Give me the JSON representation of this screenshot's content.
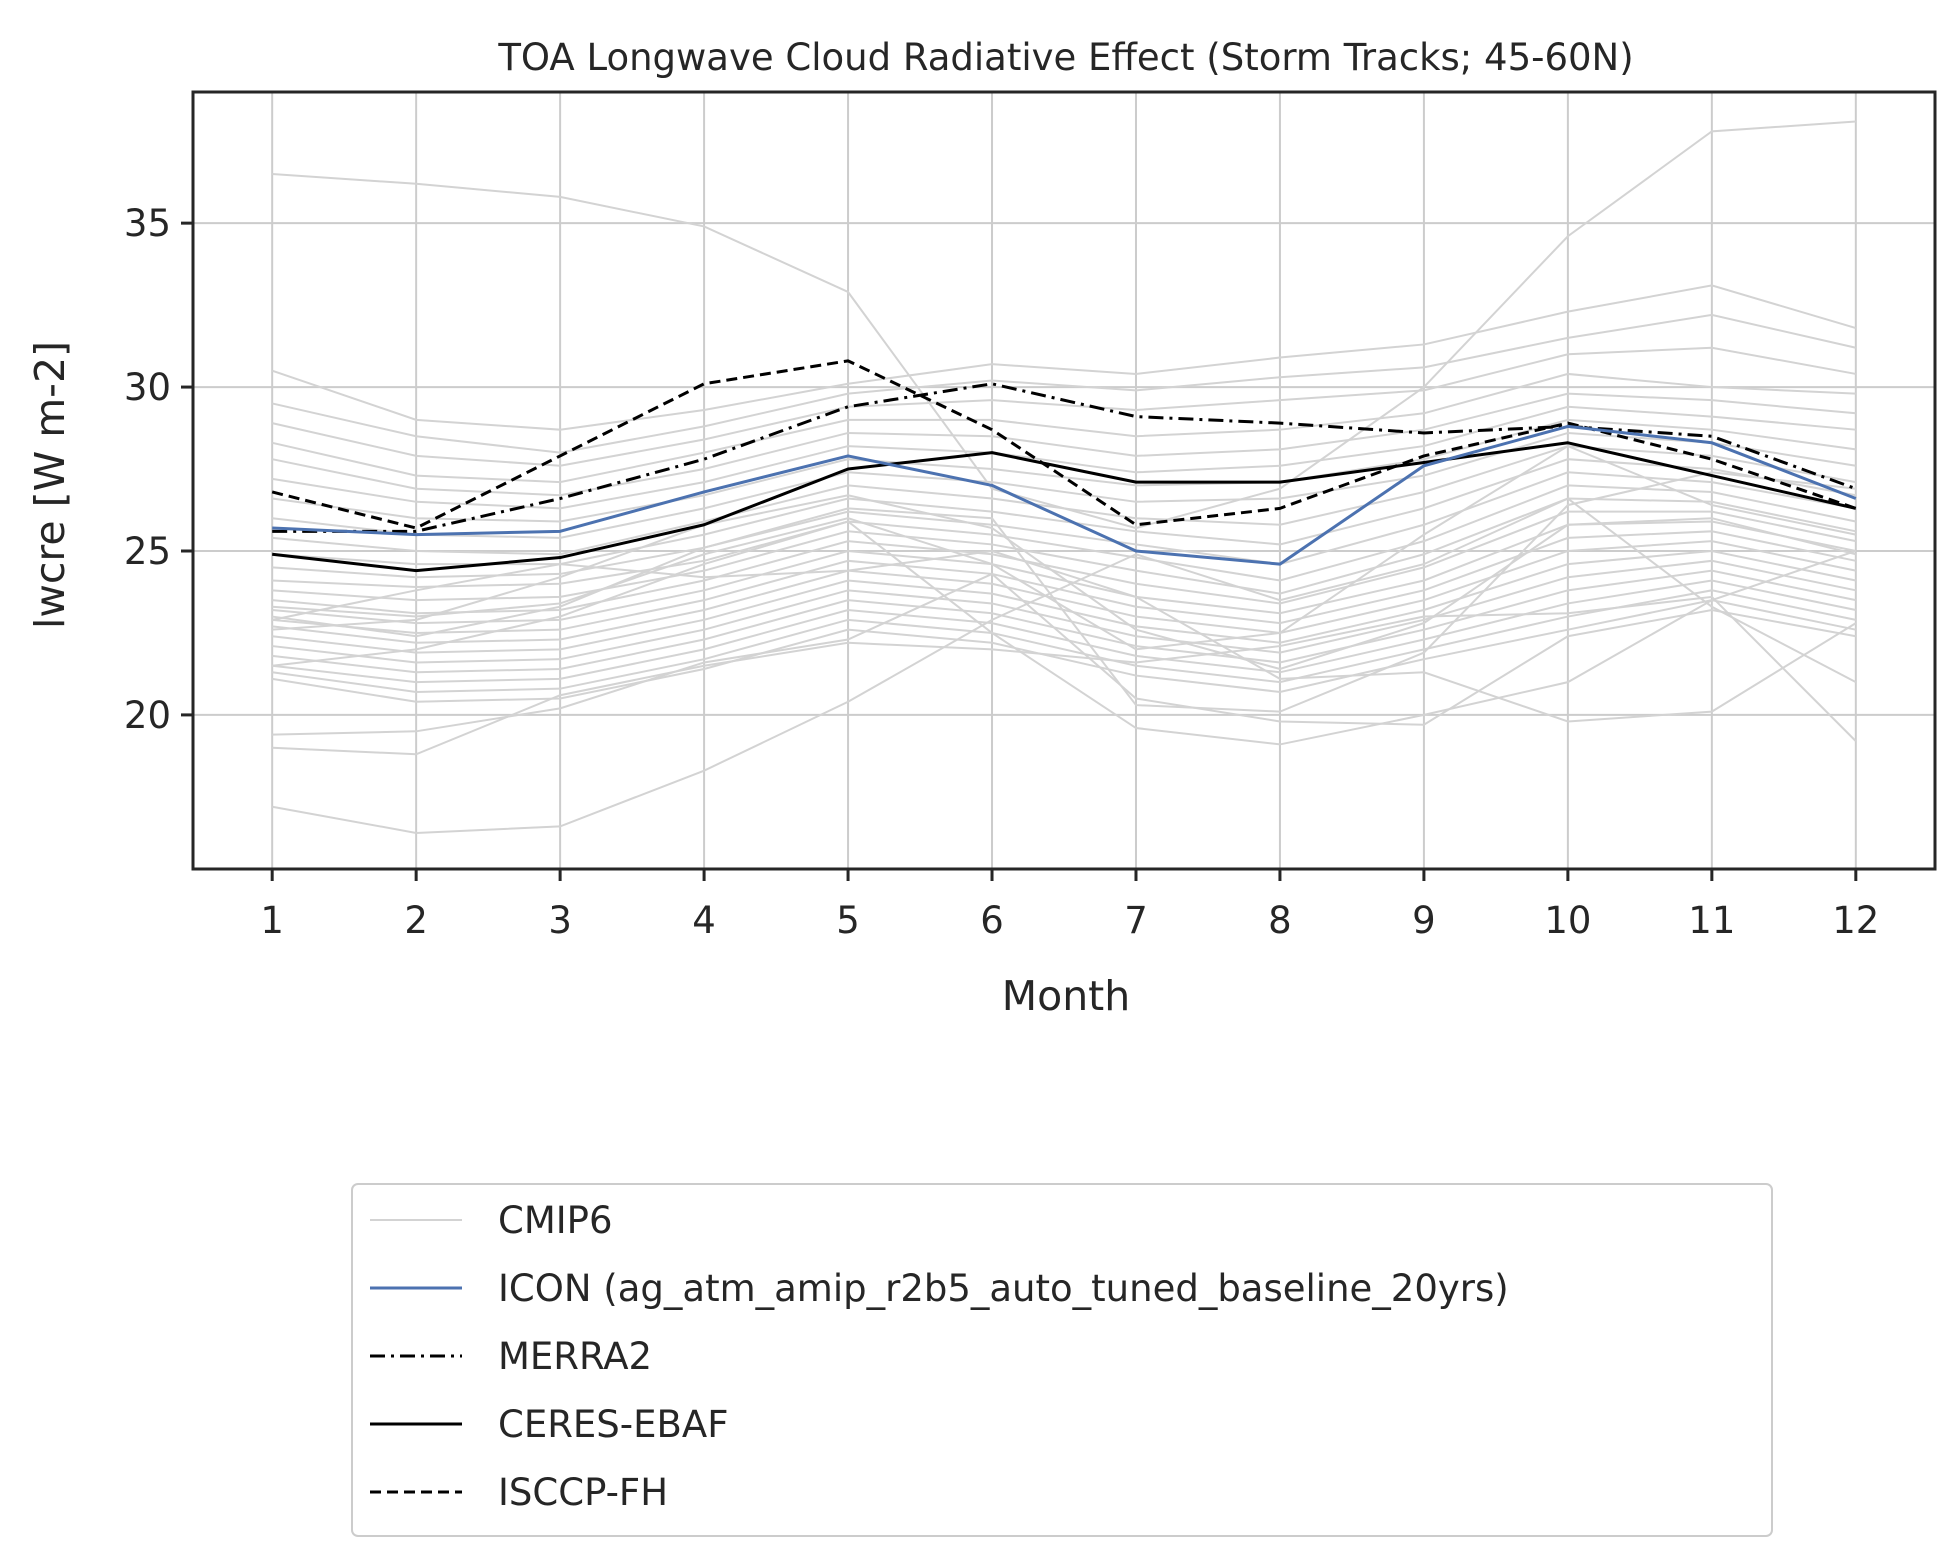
{
  "chart_data": {
    "type": "line",
    "title": "TOA Longwave Cloud Radiative Effect (Storm Tracks; 45-60N)",
    "xlabel": "Month",
    "ylabel": "lwcre [W m-2]",
    "x": [
      1,
      2,
      3,
      4,
      5,
      6,
      7,
      8,
      9,
      10,
      11,
      12
    ],
    "xlim": [
      0.45,
      12.55
    ],
    "ylim": [
      15.3,
      39.0
    ],
    "yticks": [
      20,
      25,
      30,
      35
    ],
    "grid": true,
    "legend_position": "below",
    "colors": {
      "cmip6": "#d3d3d3",
      "icon": "#4c72b0",
      "reference": "#000000",
      "grid": "#cccccc",
      "axes": "#262626"
    },
    "legend": [
      {
        "label": "CMIP6",
        "style": "solid",
        "color": "#d3d3d3"
      },
      {
        "label": "ICON (ag_atm_amip_r2b5_auto_tuned_baseline_20yrs)",
        "style": "solid",
        "color": "#4c72b0"
      },
      {
        "label": "MERRA2",
        "style": "dashdot",
        "color": "#000000"
      },
      {
        "label": "CERES-EBAF",
        "style": "solid",
        "color": "#000000"
      },
      {
        "label": "ISCCP-FH",
        "style": "dashed",
        "color": "#000000"
      }
    ],
    "cmip6_members": [
      [
        36.5,
        36.2,
        35.8,
        34.9,
        32.9,
        26.9,
        25.7,
        26.9,
        30.0,
        34.6,
        37.8,
        38.1
      ],
      [
        30.5,
        29.0,
        28.7,
        29.3,
        30.1,
        30.7,
        30.4,
        30.9,
        31.3,
        32.3,
        33.1,
        31.8
      ],
      [
        29.5,
        28.5,
        28.0,
        28.8,
        29.8,
        30.2,
        29.9,
        30.3,
        30.6,
        31.5,
        32.2,
        31.2
      ],
      [
        28.9,
        27.9,
        27.6,
        28.4,
        29.4,
        29.6,
        29.3,
        29.6,
        29.9,
        31.0,
        31.2,
        30.4
      ],
      [
        28.3,
        27.3,
        27.1,
        28.0,
        29.0,
        29.0,
        28.5,
        28.7,
        29.2,
        30.4,
        30.0,
        29.8
      ],
      [
        27.8,
        26.9,
        26.7,
        27.5,
        28.6,
        28.5,
        27.9,
        28.1,
        28.7,
        29.8,
        29.6,
        29.2
      ],
      [
        27.2,
        26.5,
        26.3,
        27.1,
        28.2,
        28.0,
        27.4,
        27.6,
        28.2,
        29.4,
        29.1,
        28.7
      ],
      [
        26.6,
        26.0,
        25.9,
        26.7,
        27.8,
        27.5,
        27.0,
        27.1,
        27.8,
        29.0,
        28.7,
        28.1
      ],
      [
        26.0,
        25.5,
        25.4,
        26.3,
        27.4,
        27.1,
        26.5,
        26.6,
        27.3,
        28.6,
        28.3,
        27.6
      ],
      [
        25.4,
        25.0,
        24.9,
        25.9,
        27.0,
        26.6,
        26.0,
        25.8,
        26.8,
        28.2,
        27.9,
        27.1
      ],
      [
        24.9,
        24.6,
        24.6,
        25.5,
        26.6,
        26.2,
        25.6,
        25.2,
        26.3,
        27.8,
        27.5,
        26.7
      ],
      [
        24.5,
        24.2,
        24.3,
        25.1,
        26.2,
        25.8,
        25.2,
        24.6,
        25.8,
        27.4,
        27.1,
        26.3
      ],
      [
        24.1,
        23.9,
        24.0,
        24.7,
        25.9,
        25.5,
        24.8,
        24.1,
        25.3,
        27.0,
        26.8,
        25.9
      ],
      [
        23.8,
        23.5,
        23.6,
        24.4,
        25.6,
        25.2,
        24.4,
        23.7,
        24.9,
        26.6,
        26.5,
        25.6
      ],
      [
        23.5,
        23.1,
        23.2,
        24.1,
        25.3,
        24.9,
        24.0,
        23.4,
        24.5,
        26.2,
        26.2,
        25.3
      ],
      [
        23.2,
        22.8,
        22.9,
        23.8,
        25.0,
        24.6,
        23.6,
        23.1,
        24.1,
        25.8,
        25.9,
        25.0
      ],
      [
        22.9,
        22.5,
        22.6,
        23.5,
        24.7,
        24.3,
        23.3,
        22.8,
        23.8,
        25.4,
        25.6,
        24.7
      ],
      [
        22.7,
        22.2,
        22.3,
        23.2,
        24.4,
        24.0,
        23.0,
        22.5,
        23.5,
        25.0,
        25.3,
        24.4
      ],
      [
        22.4,
        21.9,
        22.0,
        22.9,
        24.1,
        23.7,
        22.7,
        22.2,
        23.2,
        24.6,
        25.0,
        24.1
      ],
      [
        22.1,
        21.6,
        21.7,
        22.6,
        23.8,
        23.4,
        22.4,
        21.9,
        22.9,
        24.2,
        24.7,
        23.8
      ],
      [
        21.8,
        21.3,
        21.4,
        22.3,
        23.5,
        23.1,
        22.1,
        21.6,
        22.6,
        23.8,
        24.4,
        23.5
      ],
      [
        21.5,
        21.0,
        21.1,
        22.0,
        23.2,
        22.8,
        21.8,
        21.3,
        22.3,
        23.4,
        24.1,
        23.2
      ],
      [
        21.3,
        20.7,
        20.8,
        21.7,
        22.9,
        22.5,
        21.5,
        21.0,
        22.0,
        23.0,
        23.8,
        22.9
      ],
      [
        21.1,
        20.4,
        20.5,
        21.4,
        22.6,
        22.2,
        21.2,
        20.7,
        21.7,
        22.6,
        23.5,
        22.6
      ],
      [
        23.3,
        23.0,
        23.4,
        24.9,
        26.0,
        24.6,
        22.0,
        22.5,
        25.5,
        28.2,
        26.4,
        25.5
      ],
      [
        22.6,
        22.9,
        24.2,
        25.8,
        26.7,
        25.7,
        22.6,
        21.4,
        22.8,
        25.8,
        26.0,
        24.9
      ],
      [
        23.0,
        22.4,
        23.3,
        25.1,
        26.3,
        26.0,
        20.3,
        20.1,
        21.9,
        26.4,
        27.4,
        26.9
      ],
      [
        21.5,
        22.0,
        23.0,
        24.6,
        25.9,
        22.5,
        19.6,
        19.1,
        20.0,
        21.0,
        23.5,
        25.0
      ],
      [
        19.4,
        19.5,
        20.2,
        21.6,
        22.3,
        24.3,
        20.5,
        19.8,
        19.7,
        22.4,
        23.2,
        22.4
      ],
      [
        19.0,
        18.8,
        20.6,
        21.5,
        22.2,
        22.0,
        21.6,
        22.1,
        23.0,
        23.1,
        23.6,
        19.2
      ],
      [
        17.2,
        16.4,
        16.6,
        18.3,
        20.4,
        22.9,
        24.9,
        23.5,
        24.6,
        26.6,
        23.3,
        21.0
      ],
      [
        22.9,
        23.8,
        24.6,
        24.2,
        24.4,
        25.0,
        23.6,
        21.1,
        21.3,
        19.8,
        20.1,
        22.8
      ]
    ],
    "series": [
      {
        "name": "ICON (ag_atm_amip_r2b5_auto_tuned_baseline_20yrs)",
        "style": "solid",
        "color": "#4c72b0",
        "values": [
          25.7,
          25.5,
          25.6,
          26.8,
          27.9,
          27.0,
          25.0,
          24.6,
          27.6,
          28.8,
          28.3,
          26.6
        ]
      },
      {
        "name": "MERRA2",
        "style": "dashdot",
        "color": "#000000",
        "values": [
          25.6,
          25.6,
          26.6,
          27.8,
          29.4,
          30.1,
          29.1,
          28.9,
          28.6,
          28.8,
          28.5,
          26.9
        ]
      },
      {
        "name": "CERES-EBAF",
        "style": "solid",
        "color": "#000000",
        "values": [
          24.9,
          24.4,
          24.8,
          25.8,
          27.5,
          28.0,
          27.1,
          27.1,
          27.7,
          28.3,
          27.3,
          26.3
        ]
      },
      {
        "name": "ISCCP-FH",
        "style": "dashed",
        "color": "#000000",
        "values": [
          26.8,
          25.7,
          27.9,
          30.1,
          30.8,
          28.7,
          25.8,
          26.3,
          27.9,
          28.9,
          27.8,
          26.3
        ]
      }
    ]
  }
}
